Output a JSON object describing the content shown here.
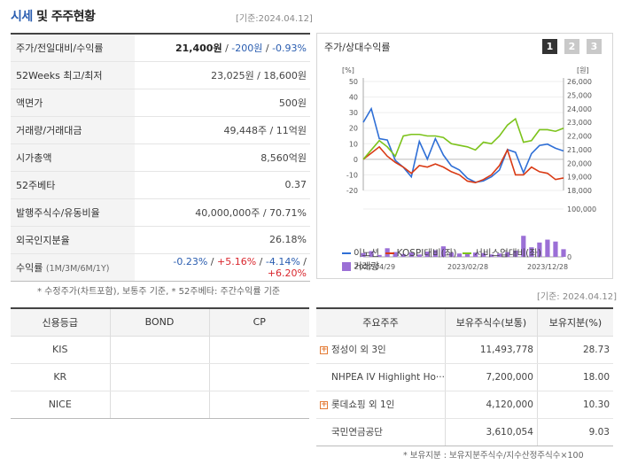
{
  "header": {
    "title_accent": "시세",
    "title_rest": " 및 주주현황",
    "ref_date": "[기준:2024.04.12]"
  },
  "price_info": {
    "rows": [
      {
        "label": "주가/전일대비/수익률"
      },
      {
        "label": "52Weeks 최고/최저",
        "value": "23,025원 / 18,600원"
      },
      {
        "label": "액면가",
        "value": "500원"
      },
      {
        "label": "거래량/거래대금",
        "value": "49,448주 / 11억원"
      },
      {
        "label": "시가총액",
        "value": "8,560억원"
      },
      {
        "label": "52주베타",
        "value": "0.37"
      },
      {
        "label": "발행주식수/유동비율",
        "value": "40,000,000주 / 70.71%"
      },
      {
        "label": "외국인지분율",
        "value": "26.18%"
      },
      {
        "label": "수익률",
        "sub": "(1M/3M/6M/1Y)"
      }
    ],
    "price": "21,400원",
    "change": "-200원",
    "change_rate": "-0.93%",
    "returns": {
      "m1": "-0.23%",
      "m3": "+5.16%",
      "m6": "-4.14%",
      "y1": "+6.20%"
    }
  },
  "footnote_top": "* 수정주가(차트포함), 보통주 기준, * 52주베타: 주간수익률 기준",
  "chart_panel": {
    "title": "주가/상대수익률",
    "pager": [
      "1",
      "2",
      "3"
    ],
    "legend": {
      "item1": "이노션",
      "item2": "KOSPI대비(좌)",
      "item3": "서비스업대비(좌)",
      "item4": "거래량"
    }
  },
  "chart_data": {
    "type": "line",
    "left_axis_unit": "[%]",
    "right_axis_unit": "[원]",
    "left_ticks": [
      50,
      40,
      30,
      20,
      10,
      0,
      -10,
      -20
    ],
    "right_ticks": [
      "26,000",
      "25,000",
      "24,000",
      "23,000",
      "22,000",
      "21,000",
      "20,000",
      "19,000",
      "18,000"
    ],
    "volume_tick": "100,000",
    "volume_tick_zero": "0",
    "x_labels": [
      "2022/04/29",
      "2023/02/28",
      "2023/12/28"
    ],
    "ylim_left": [
      -20,
      50
    ],
    "ylim_right": [
      18000,
      26000
    ],
    "series": [
      {
        "name": "이노션",
        "color": "#2f6fd6",
        "axis": "right",
        "values": [
          23000,
          24000,
          21800,
          21700,
          20200,
          19700,
          19000,
          21600,
          20300,
          21800,
          20600,
          19800,
          19500,
          18900,
          18600,
          18700,
          19000,
          19500,
          21000,
          20800,
          19300,
          20700,
          21300,
          21400,
          21100,
          20900
        ]
      },
      {
        "name": "KOSPI대비(좌)",
        "color": "#d93a14",
        "axis": "left",
        "values": [
          0,
          4,
          8,
          2,
          -2,
          -5,
          -9,
          -4,
          -5,
          -3,
          -5,
          -8,
          -10,
          -14,
          -15,
          -13,
          -10,
          -4,
          6,
          -10,
          -10,
          -5,
          -8,
          -9,
          -13,
          -12
        ]
      },
      {
        "name": "서비스업대비(좌)",
        "color": "#7cc31b",
        "axis": "left",
        "values": [
          0,
          6,
          12,
          8,
          2,
          15,
          16,
          16,
          15,
          15,
          14,
          10,
          9,
          8,
          6,
          11,
          10,
          15,
          22,
          26,
          11,
          12,
          19,
          19,
          18,
          20
        ]
      }
    ],
    "volume": [
      8000,
      12000,
      4000,
      18000,
      10000,
      6000,
      9000,
      5000,
      11000,
      14000,
      22000,
      9000,
      7000,
      6000,
      9000,
      8000,
      5000,
      7000,
      10000,
      13000,
      44000,
      20000,
      30000,
      36000,
      32000,
      16000
    ]
  },
  "credit_table": {
    "headers": [
      "신용등급",
      "BOND",
      "CP"
    ],
    "rows": [
      {
        "agency": "KIS",
        "bond": "",
        "cp": ""
      },
      {
        "agency": "KR",
        "bond": "",
        "cp": ""
      },
      {
        "agency": "NICE",
        "bond": "",
        "cp": ""
      }
    ]
  },
  "holders_table": {
    "ref_date": "[기준: 2024.04.12]",
    "headers": [
      "주요주주",
      "보유주식수(보통)",
      "보유지분(%)"
    ],
    "rows": [
      {
        "name": "정성이 외 3인",
        "shares": "11,493,778",
        "pct": "28.73",
        "expandable": true
      },
      {
        "name": "NHPEA IV Highlight Ho···",
        "shares": "7,200,000",
        "pct": "18.00",
        "expandable": false
      },
      {
        "name": "롯데쇼핑 외 1인",
        "shares": "4,120,000",
        "pct": "10.30",
        "expandable": true
      },
      {
        "name": "국민연금공단",
        "shares": "3,610,054",
        "pct": "9.03",
        "expandable": false
      }
    ],
    "footnote": "* 보유지분 : 보유지분주식수/지수산정주식수×100"
  }
}
